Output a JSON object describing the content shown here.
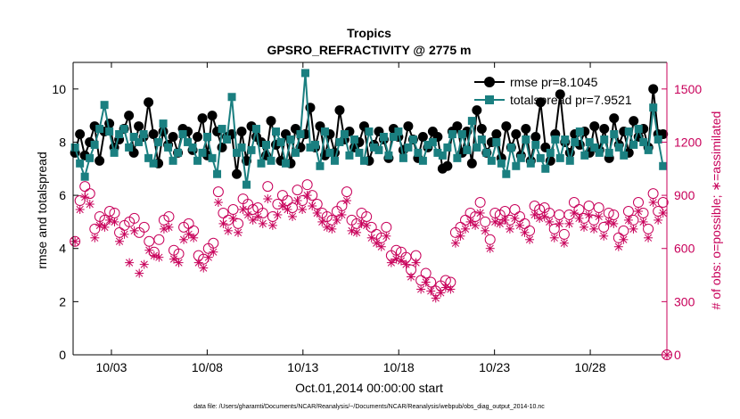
{
  "chart_data": {
    "type": "line",
    "title": "Tropics",
    "subtitle": "GPSRO_REFRACTIVITY @ 2775 m",
    "xlabel": "Oct.01,2014 00:00:00 start",
    "ylabel_left": "rmse and totalspread",
    "ylabel_right": "# of obs: o=possible; ∗=assimilated",
    "ylim_left": [
      0,
      11
    ],
    "ylim_right": [
      0,
      1650
    ],
    "xlim": [
      1,
      32.0
    ],
    "x_ticks": [
      3,
      8,
      13,
      18,
      23,
      28
    ],
    "x_tick_labels": [
      "10/03",
      "10/08",
      "10/13",
      "10/18",
      "10/23",
      "10/28"
    ],
    "y_ticks_left": [
      0,
      2,
      4,
      6,
      8,
      10
    ],
    "y_ticks_right": [
      0,
      300,
      600,
      900,
      1200,
      1500
    ],
    "legend": [
      "rmse pr=8.1045",
      "totalspread pr=7.9521"
    ],
    "footer": "data file: /Users/gharamti/Documents/NCAR/Reanalysis/~/Documents/NCAR/Reanalysis/webpub/obs_diag_output_2014-10.nc",
    "series": [
      {
        "name": "rmse",
        "color": "#000000",
        "axis": "left",
        "y": [
          7.6,
          8.3,
          7.5,
          8.0,
          8.6,
          7.3,
          8.4,
          8.7,
          7.8,
          8.1,
          8.5,
          9.0,
          7.6,
          8.6,
          8.2,
          9.5,
          8.3,
          7.2,
          8.4,
          7.9,
          8.2,
          7.6,
          8.5,
          8.4,
          7.7,
          8.2,
          8.9,
          7.5,
          9.0,
          8.4,
          7.8,
          8.2,
          8.3,
          6.8,
          8.4,
          7.3,
          8.6,
          8.2,
          8.0,
          7.5,
          8.8,
          7.9,
          7.3,
          8.3,
          7.2,
          8.5,
          7.8,
          8.3,
          9.3,
          7.8,
          8.6,
          7.5,
          8.3,
          7.6,
          9.2,
          8.1,
          8.4,
          7.8,
          8.0,
          8.6,
          7.3,
          7.9,
          8.4,
          8.1,
          7.4,
          8.5,
          8.2,
          7.7,
          8.6,
          8.1,
          7.4,
          8.2,
          7.8,
          8.4,
          8.2,
          7.0,
          7.1,
          8.4,
          8.6,
          7.6,
          8.4,
          7.2,
          9.2,
          8.5,
          7.6,
          8.0,
          8.3,
          7.4,
          8.6,
          7.8,
          8.3,
          7.5,
          8.5,
          7.3,
          8.2,
          9.5,
          7.8,
          7.3,
          8.3,
          9.8,
          8.0,
          7.6,
          8.3,
          7.9,
          8.4,
          7.6,
          8.6,
          7.7,
          8.5,
          7.4,
          8.9,
          7.9,
          8.4,
          7.6,
          8.8,
          8.2,
          8.5,
          7.8,
          10.0,
          8.3,
          8.3
        ]
      },
      {
        "name": "totalspread",
        "color": "#1a7f80",
        "axis": "left",
        "y": [
          7.8,
          7.2,
          6.7,
          7.4,
          7.9,
          8.5,
          9.4,
          8.4,
          7.6,
          8.3,
          8.5,
          7.8,
          8.2,
          8.0,
          8.3,
          7.4,
          7.2,
          8.0,
          8.7,
          7.8,
          7.3,
          7.6,
          8.3,
          8.0,
          7.8,
          7.3,
          7.6,
          8.2,
          7.4,
          6.8,
          8.5,
          8.1,
          9.7,
          7.6,
          7.8,
          6.4,
          7.7,
          8.5,
          7.2,
          7.9,
          7.3,
          8.4,
          8.0,
          7.2,
          8.1,
          7.6,
          8.3,
          10.6,
          7.8,
          7.9,
          7.1,
          8.4,
          7.6,
          7.3,
          8.0,
          8.3,
          7.5,
          8.1,
          7.6,
          7.3,
          8.4,
          7.8,
          7.7,
          8.2,
          7.5,
          8.2,
          8.4,
          7.4,
          7.8,
          8.1,
          7.6,
          7.3,
          7.9,
          8.0,
          7.6,
          7.5,
          7.8,
          8.3,
          7.4,
          8.3,
          7.7,
          8.8,
          7.8,
          8.1,
          7.6,
          7.3,
          8.0,
          7.2,
          6.8,
          7.8,
          7.1,
          7.4,
          8.1,
          7.2,
          7.9,
          7.4,
          7.0,
          7.6,
          8.1,
          7.4,
          8.1,
          7.3,
          8.0,
          8.4,
          7.5,
          8.0,
          7.8,
          7.6,
          8.1,
          7.6,
          8.3,
          7.8,
          7.5,
          8.4,
          7.9,
          8.5,
          8.0,
          7.7,
          9.3,
          8.1,
          7.1
        ]
      },
      {
        "name": "possible",
        "color": "#c8005a",
        "axis": "right",
        "marker": "circle",
        "y": [
          640,
          870,
          950,
          910,
          710,
          780,
          760,
          810,
          800,
          690,
          730,
          750,
          770,
          690,
          720,
          640,
          580,
          650,
          760,
          780,
          590,
          570,
          720,
          740,
          700,
          560,
          540,
          600,
          630,
          920,
          800,
          760,
          820,
          740,
          880,
          850,
          820,
          830,
          800,
          950,
          780,
          850,
          900,
          870,
          830,
          930,
          870,
          960,
          900,
          850,
          800,
          780,
          760,
          810,
          840,
          920,
          760,
          740,
          800,
          780,
          720,
          680,
          660,
          720,
          560,
          590,
          580,
          550,
          480,
          560,
          420,
          460,
          410,
          360,
          390,
          420,
          410,
          690,
          720,
          760,
          800,
          780,
          860,
          750,
          650,
          800,
          790,
          810,
          760,
          820,
          780,
          740,
          700,
          840,
          820,
          830,
          800,
          710,
          790,
          680,
          790,
          860,
          820,
          770,
          840,
          760,
          830,
          720,
          800,
          790,
          660,
          700,
          810,
          760,
          860,
          800,
          710,
          910,
          810,
          860
        ]
      },
      {
        "name": "assimilated",
        "color": "#c8005a",
        "axis": "right",
        "marker": "star",
        "y": [
          640,
          820,
          890,
          850,
          660,
          730,
          720,
          760,
          750,
          640,
          680,
          520,
          700,
          460,
          510,
          590,
          560,
          550,
          710,
          720,
          540,
          520,
          650,
          680,
          660,
          520,
          490,
          550,
          580,
          860,
          740,
          700,
          770,
          690,
          820,
          790,
          760,
          780,
          740,
          880,
          730,
          790,
          840,
          820,
          780,
          870,
          820,
          900,
          840,
          800,
          750,
          720,
          710,
          760,
          790,
          870,
          700,
          690,
          740,
          730,
          660,
          630,
          610,
          670,
          520,
          540,
          530,
          510,
          440,
          520,
          370,
          410,
          360,
          320,
          350,
          380,
          370,
          630,
          670,
          710,
          750,
          730,
          800,
          700,
          600,
          750,
          740,
          760,
          710,
          770,
          730,
          690,
          650,
          790,
          770,
          780,
          750,
          660,
          740,
          630,
          740,
          800,
          770,
          720,
          790,
          710,
          780,
          670,
          750,
          740,
          610,
          650,
          760,
          710,
          810,
          750,
          660,
          860,
          760,
          800
        ]
      }
    ]
  }
}
